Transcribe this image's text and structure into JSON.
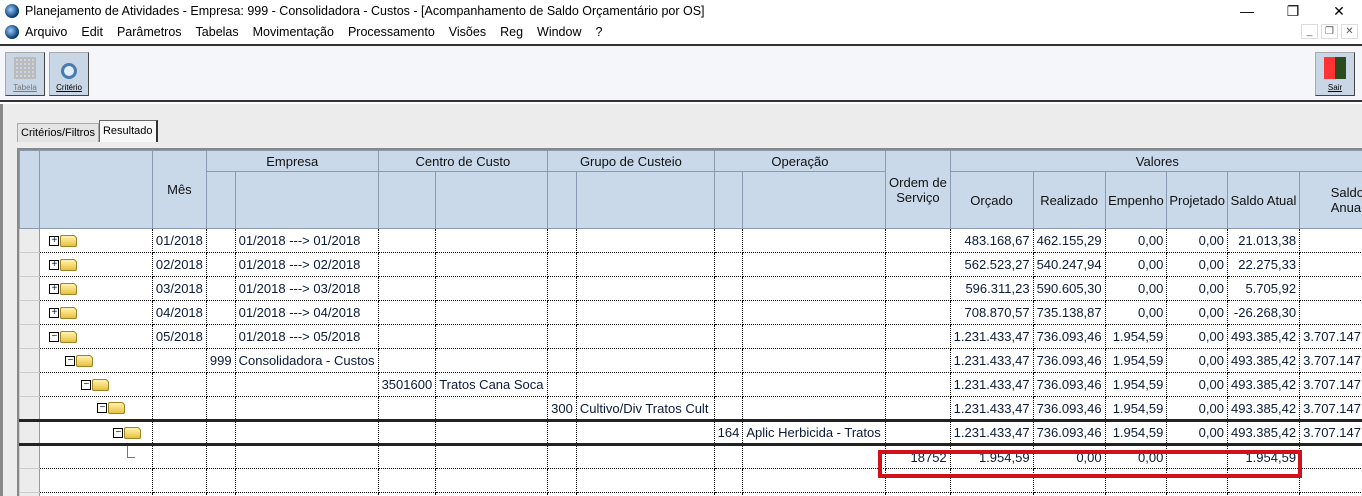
{
  "window": {
    "title": "Planejamento de Atividades  - Empresa: 999 - Consolidadora - Custos - [Acompanhamento de Saldo Orçamentário por OS]"
  },
  "menu": [
    "Arquivo",
    "Edit",
    "Parâmetros",
    "Tabelas",
    "Movimentação",
    "Processamento",
    "Visões",
    "Reg",
    "Window",
    "?"
  ],
  "toolbar": {
    "tabela": "Tabela",
    "criterio": "Critério",
    "sair": "Sair"
  },
  "tabs": [
    {
      "label": "Critérios/Filtros",
      "active": false
    },
    {
      "label": "Resultado",
      "active": true
    }
  ],
  "grid": {
    "headers": {
      "mes": "Mês",
      "empresa": "Empresa",
      "centro": "Centro de Custo",
      "grupo": "Grupo de Custeio",
      "operacao": "Operação",
      "os": "Ordem de Serviço",
      "valores": "Valores",
      "orcado": "Orçado",
      "realizado": "Realizado",
      "empenho": "Empenho",
      "projetado": "Projetado",
      "saldo_atual": "Saldo Atual",
      "saldo_anual": "Saldo Anual"
    },
    "rows": [
      {
        "level": 0,
        "expanded": false,
        "mes": "01/2018",
        "emp_cod": "",
        "emp": "01/2018 ---> 01/2018",
        "cc_cod": "",
        "cc": "",
        "gc_cod": "",
        "gc": "",
        "op_cod": "",
        "op": "",
        "os": "",
        "orcado": "483.168,67",
        "realizado": "462.155,29",
        "empenho": "0,00",
        "projetado": "0,00",
        "saldo_atual": "21.013,38",
        "saldo_anual": ""
      },
      {
        "level": 0,
        "expanded": false,
        "mes": "02/2018",
        "emp_cod": "",
        "emp": "01/2018 ---> 02/2018",
        "cc_cod": "",
        "cc": "",
        "gc_cod": "",
        "gc": "",
        "op_cod": "",
        "op": "",
        "os": "",
        "orcado": "562.523,27",
        "realizado": "540.247,94",
        "empenho": "0,00",
        "projetado": "0,00",
        "saldo_atual": "22.275,33",
        "saldo_anual": ""
      },
      {
        "level": 0,
        "expanded": false,
        "mes": "03/2018",
        "emp_cod": "",
        "emp": "01/2018 ---> 03/2018",
        "cc_cod": "",
        "cc": "",
        "gc_cod": "",
        "gc": "",
        "op_cod": "",
        "op": "",
        "os": "",
        "orcado": "596.311,23",
        "realizado": "590.605,30",
        "empenho": "0,00",
        "projetado": "0,00",
        "saldo_atual": "5.705,92",
        "saldo_anual": ""
      },
      {
        "level": 0,
        "expanded": false,
        "mes": "04/2018",
        "emp_cod": "",
        "emp": "01/2018 ---> 04/2018",
        "cc_cod": "",
        "cc": "",
        "gc_cod": "",
        "gc": "",
        "op_cod": "",
        "op": "",
        "os": "",
        "orcado": "708.870,57",
        "realizado": "735.138,87",
        "empenho": "0,00",
        "projetado": "0,00",
        "saldo_atual": "-26.268,30",
        "saldo_anual": ""
      },
      {
        "level": 0,
        "expanded": true,
        "mes": "05/2018",
        "emp_cod": "",
        "emp": "01/2018 ---> 05/2018",
        "cc_cod": "",
        "cc": "",
        "gc_cod": "",
        "gc": "",
        "op_cod": "",
        "op": "",
        "os": "",
        "orcado": "1.231.433,47",
        "realizado": "736.093,46",
        "empenho": "1.954,59",
        "projetado": "0,00",
        "saldo_atual": "493.385,42",
        "saldo_anual": "3.707.147"
      },
      {
        "level": 1,
        "expanded": true,
        "mes": "",
        "emp_cod": "999",
        "emp": "Consolidadora - Custos",
        "cc_cod": "",
        "cc": "",
        "gc_cod": "",
        "gc": "",
        "op_cod": "",
        "op": "",
        "os": "",
        "orcado": "1.231.433,47",
        "realizado": "736.093,46",
        "empenho": "1.954,59",
        "projetado": "0,00",
        "saldo_atual": "493.385,42",
        "saldo_anual": "3.707.147"
      },
      {
        "level": 2,
        "expanded": true,
        "mes": "",
        "emp_cod": "",
        "emp": "",
        "cc_cod": "3501600",
        "cc": "Tratos Cana Soca",
        "gc_cod": "",
        "gc": "",
        "op_cod": "",
        "op": "",
        "os": "",
        "orcado": "1.231.433,47",
        "realizado": "736.093,46",
        "empenho": "1.954,59",
        "projetado": "0,00",
        "saldo_atual": "493.385,42",
        "saldo_anual": "3.707.147"
      },
      {
        "level": 3,
        "expanded": true,
        "mes": "",
        "emp_cod": "",
        "emp": "",
        "cc_cod": "",
        "cc": "",
        "gc_cod": "300",
        "gc": "Cultivo/Div Tratos Cult",
        "op_cod": "",
        "op": "",
        "os": "",
        "orcado": "1.231.433,47",
        "realizado": "736.093,46",
        "empenho": "1.954,59",
        "projetado": "0,00",
        "saldo_atual": "493.385,42",
        "saldo_anual": "3.707.147"
      },
      {
        "level": 4,
        "expanded": true,
        "mes": "",
        "emp_cod": "",
        "emp": "",
        "cc_cod": "",
        "cc": "",
        "gc_cod": "",
        "gc": "",
        "op_cod": "164",
        "op": "Aplic Herbicida - Tratos",
        "os": "",
        "orcado": "1.231.433,47",
        "realizado": "736.093,46",
        "empenho": "1.954,59",
        "projetado": "0,00",
        "saldo_atual": "493.385,42",
        "saldo_anual": "3.707.147"
      },
      {
        "level": 5,
        "leaf": true,
        "mes": "",
        "emp_cod": "",
        "emp": "",
        "cc_cod": "",
        "cc": "",
        "gc_cod": "",
        "gc": "",
        "op_cod": "",
        "op": "",
        "os": "18752",
        "orcado": "1.954,59",
        "realizado": "0,00",
        "empenho": "0,00",
        "projetado": "",
        "saldo_atual": "1.954,59",
        "saldo_anual": ""
      },
      {
        "blank": true
      },
      {
        "blank": true
      }
    ]
  },
  "colors": {
    "header": "#c9d9ea",
    "highlight": "#d0101a"
  }
}
